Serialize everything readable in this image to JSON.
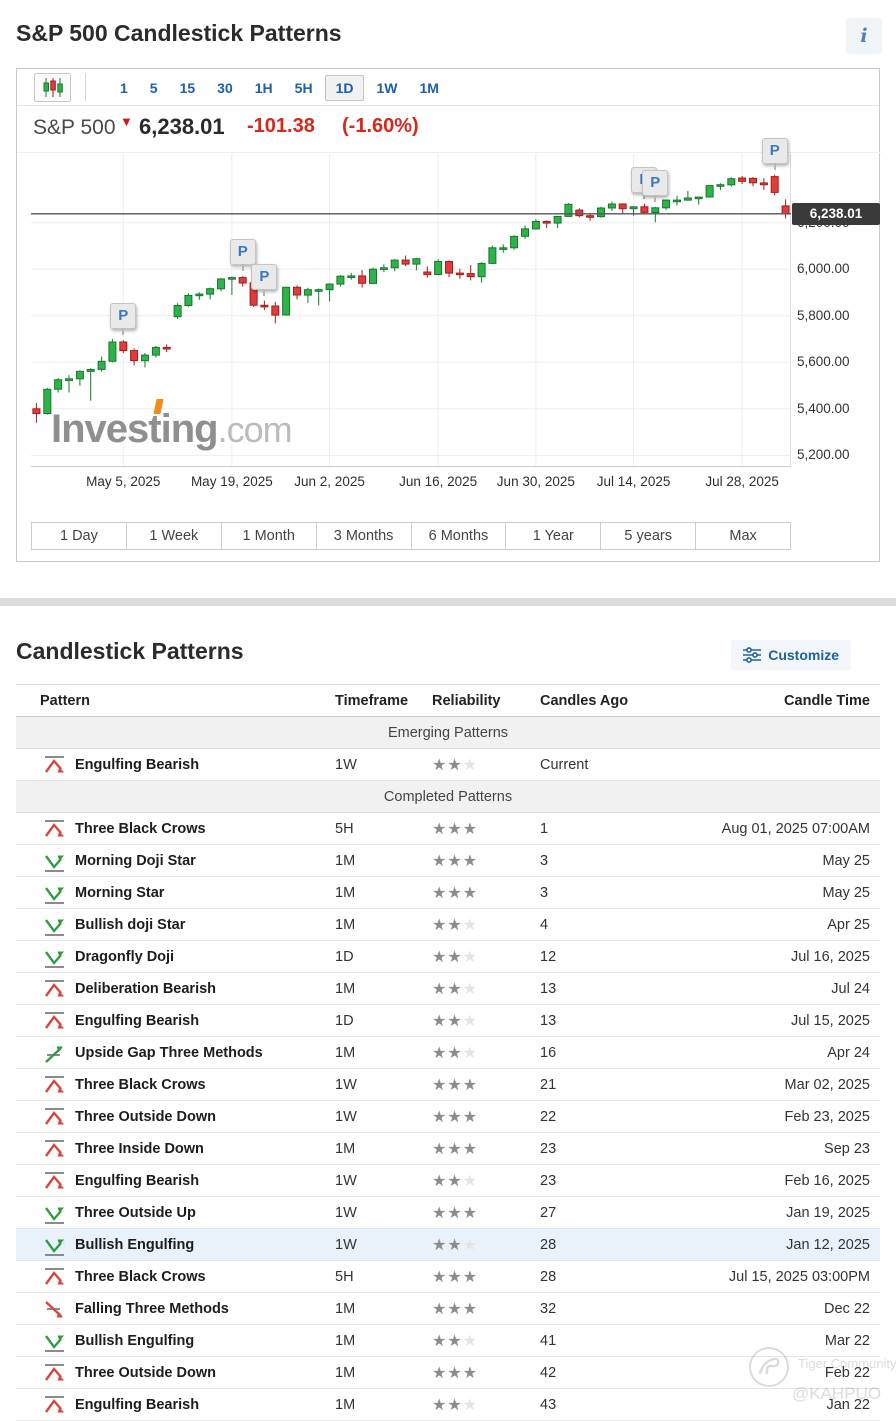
{
  "page": {
    "title": "S&P 500 Candlestick Patterns"
  },
  "icons": {
    "info": "i",
    "chart_type": "candlestick",
    "customize": "sliders",
    "pattern_bearish": "peak-arrow-down",
    "pattern_bullish": "valley-arrow-up",
    "pattern_bullish_cont": "arrow-up-through-line",
    "pattern_bearish_cont": "arrow-down-through-line"
  },
  "colors": {
    "up": "#2fb24a",
    "up_border": "#157a2c",
    "down": "#e23b3b",
    "down_border": "#a31d1d",
    "link_blue": "#1c60a8",
    "change_red": "#d8271c",
    "star_filled": "#8c8c8c",
    "star_empty": "#e4e4e2",
    "highlight_row": "#e9f2fb",
    "price_line": "#555555"
  },
  "chart_widget": {
    "timeframes": [
      "1",
      "5",
      "15",
      "30",
      "1H",
      "5H",
      "1D",
      "1W",
      "1M"
    ],
    "selected_timeframe": "1D",
    "instrument": "S&P 500",
    "price": "6,238.01",
    "change": "-101.38",
    "change_pct": "(-1.60%)",
    "price_tag": "6,238.01",
    "logo_main": "Investing",
    "logo_suffix": ".com",
    "range_buttons": [
      "1 Day",
      "1 Week",
      "1 Month",
      "3 Months",
      "6 Months",
      "1 Year",
      "5 years",
      "Max"
    ]
  },
  "chart_data": {
    "type": "candlestick",
    "title": "S&P 500 daily candlestick chart",
    "ylim": [
      5150,
      6495
    ],
    "current_price": 6238.01,
    "y_tick_labels": [
      "6,200.00",
      "6,000.00",
      "5,800.00",
      "5,600.00",
      "5,400.00",
      "5,200.00"
    ],
    "y_tick_values": [
      6200,
      6000,
      5800,
      5600,
      5400,
      5200
    ],
    "x_labels": [
      "May 5, 2025",
      "May 19, 2025",
      "Jun 2, 2025",
      "Jun 16, 2025",
      "Jun 30, 2025",
      "Jul 14, 2025",
      "Jul 28, 2025"
    ],
    "x_label_candle_indices": [
      8,
      18,
      27,
      37,
      46,
      55,
      65
    ],
    "candles": [
      [
        5400,
        5425,
        5340,
        5380
      ],
      [
        5380,
        5490,
        5375,
        5484
      ],
      [
        5484,
        5532,
        5470,
        5525
      ],
      [
        5525,
        5545,
        5470,
        5529
      ],
      [
        5529,
        5565,
        5500,
        5561
      ],
      [
        5561,
        5575,
        5435,
        5569
      ],
      [
        5569,
        5625,
        5560,
        5604
      ],
      [
        5604,
        5700,
        5600,
        5687
      ],
      [
        5687,
        5695,
        5640,
        5650
      ],
      [
        5650,
        5660,
        5586,
        5607
      ],
      [
        5607,
        5640,
        5578,
        5631
      ],
      [
        5631,
        5670,
        5620,
        5664
      ],
      [
        5664,
        5677,
        5644,
        5660
      ],
      [
        5796,
        5854,
        5786,
        5844
      ],
      [
        5844,
        5897,
        5838,
        5887
      ],
      [
        5887,
        5901,
        5868,
        5893
      ],
      [
        5893,
        5921,
        5870,
        5916
      ],
      [
        5916,
        5962,
        5905,
        5958
      ],
      [
        5958,
        5968,
        5889,
        5964
      ],
      [
        5964,
        5970,
        5925,
        5941
      ],
      [
        5941,
        5955,
        5838,
        5845
      ],
      [
        5845,
        5865,
        5825,
        5842
      ],
      [
        5842,
        5860,
        5767,
        5803
      ],
      [
        5803,
        5925,
        5800,
        5922
      ],
      [
        5922,
        5930,
        5870,
        5889
      ],
      [
        5889,
        5920,
        5855,
        5912
      ],
      [
        5912,
        5917,
        5844,
        5912
      ],
      [
        5912,
        5940,
        5861,
        5936
      ],
      [
        5936,
        5975,
        5925,
        5970
      ],
      [
        5970,
        5983,
        5955,
        5971
      ],
      [
        5971,
        5996,
        5921,
        5939
      ],
      [
        5939,
        6007,
        5935,
        6000
      ],
      [
        6000,
        6021,
        5987,
        6006
      ],
      [
        6006,
        6043,
        5992,
        6039
      ],
      [
        6039,
        6059,
        6013,
        6022
      ],
      [
        6022,
        6049,
        5995,
        6045
      ],
      [
        5988,
        6012,
        5963,
        5977
      ],
      [
        5977,
        6043,
        5974,
        6033
      ],
      [
        6033,
        6038,
        5965,
        5983
      ],
      [
        5983,
        6002,
        5959,
        5981
      ],
      [
        5981,
        6018,
        5952,
        5968
      ],
      [
        5968,
        6030,
        5943,
        6025
      ],
      [
        6025,
        6101,
        6022,
        6092
      ],
      [
        6092,
        6107,
        6071,
        6092
      ],
      [
        6092,
        6146,
        6083,
        6141
      ],
      [
        6141,
        6188,
        6130,
        6173
      ],
      [
        6173,
        6215,
        6170,
        6205
      ],
      [
        6205,
        6210,
        6177,
        6198
      ],
      [
        6198,
        6228,
        6177,
        6227
      ],
      [
        6227,
        6284,
        6226,
        6279
      ],
      [
        6254,
        6262,
        6223,
        6230
      ],
      [
        6230,
        6242,
        6208,
        6226
      ],
      [
        6226,
        6269,
        6221,
        6263
      ],
      [
        6263,
        6290,
        6251,
        6280
      ],
      [
        6280,
        6283,
        6238,
        6260
      ],
      [
        6260,
        6271,
        6229,
        6268
      ],
      [
        6268,
        6282,
        6236,
        6244
      ],
      [
        6244,
        6268,
        6202,
        6264
      ],
      [
        6264,
        6299,
        6254,
        6297
      ],
      [
        6297,
        6315,
        6274,
        6297
      ],
      [
        6297,
        6336,
        6294,
        6306
      ],
      [
        6306,
        6310,
        6277,
        6310
      ],
      [
        6310,
        6360,
        6308,
        6359
      ],
      [
        6359,
        6369,
        6340,
        6363
      ],
      [
        6363,
        6395,
        6355,
        6389
      ],
      [
        6392,
        6401,
        6366,
        6378
      ],
      [
        6390,
        6396,
        6356,
        6371
      ],
      [
        6371,
        6391,
        6341,
        6363
      ],
      [
        6398,
        6406,
        6318,
        6330
      ],
      [
        6272,
        6300,
        6218,
        6238
      ]
    ],
    "pattern_markers": [
      {
        "label": "P",
        "candle": 8
      },
      {
        "label": "P",
        "candle": 19
      },
      {
        "label": "P",
        "candle": 21
      },
      {
        "label": "P",
        "candle": 56
      },
      {
        "label": "P",
        "candle": 57
      },
      {
        "label": "P",
        "candle": 68
      }
    ]
  },
  "patterns_section": {
    "title": "Candlestick Patterns",
    "customize_label": "Customize"
  },
  "patterns_table": {
    "columns": [
      "Pattern",
      "Timeframe",
      "Reliability",
      "Candles Ago",
      "Candle Time"
    ],
    "max_stars": 3,
    "rows": [
      {
        "type": "group",
        "label": "Emerging Patterns"
      },
      {
        "type": "row",
        "name": "Engulfing Bearish",
        "direction": "bearish",
        "timeframe": "1W",
        "reliability": 2,
        "candles_ago": "Current",
        "candle_time": ""
      },
      {
        "type": "group",
        "label": "Completed Patterns"
      },
      {
        "type": "row",
        "name": "Three Black Crows",
        "direction": "bearish",
        "timeframe": "5H",
        "reliability": 3,
        "candles_ago": "1",
        "candle_time": "Aug 01, 2025 07:00AM"
      },
      {
        "type": "row",
        "name": "Morning Doji Star",
        "direction": "bullish",
        "timeframe": "1M",
        "reliability": 3,
        "candles_ago": "3",
        "candle_time": "May 25"
      },
      {
        "type": "row",
        "name": "Morning Star",
        "direction": "bullish",
        "timeframe": "1M",
        "reliability": 3,
        "candles_ago": "3",
        "candle_time": "May 25"
      },
      {
        "type": "row",
        "name": "Bullish doji Star",
        "direction": "bullish",
        "timeframe": "1M",
        "reliability": 2,
        "candles_ago": "4",
        "candle_time": "Apr 25"
      },
      {
        "type": "row",
        "name": "Dragonfly Doji",
        "direction": "bullish",
        "timeframe": "1D",
        "reliability": 2,
        "candles_ago": "12",
        "candle_time": "Jul 16, 2025"
      },
      {
        "type": "row",
        "name": "Deliberation Bearish",
        "direction": "bearish",
        "timeframe": "1M",
        "reliability": 2,
        "candles_ago": "13",
        "candle_time": "Jul 24"
      },
      {
        "type": "row",
        "name": "Engulfing Bearish",
        "direction": "bearish",
        "timeframe": "1D",
        "reliability": 2,
        "candles_ago": "13",
        "candle_time": "Jul 15, 2025"
      },
      {
        "type": "row",
        "name": "Upside Gap Three Methods",
        "direction": "bullish-cont",
        "timeframe": "1M",
        "reliability": 2,
        "candles_ago": "16",
        "candle_time": "Apr 24"
      },
      {
        "type": "row",
        "name": "Three Black Crows",
        "direction": "bearish",
        "timeframe": "1W",
        "reliability": 3,
        "candles_ago": "21",
        "candle_time": "Mar 02, 2025"
      },
      {
        "type": "row",
        "name": "Three Outside Down",
        "direction": "bearish",
        "timeframe": "1W",
        "reliability": 3,
        "candles_ago": "22",
        "candle_time": "Feb 23, 2025"
      },
      {
        "type": "row",
        "name": "Three Inside Down",
        "direction": "bearish",
        "timeframe": "1M",
        "reliability": 3,
        "candles_ago": "23",
        "candle_time": "Sep 23"
      },
      {
        "type": "row",
        "name": "Engulfing Bearish",
        "direction": "bearish",
        "timeframe": "1W",
        "reliability": 2,
        "candles_ago": "23",
        "candle_time": "Feb 16, 2025"
      },
      {
        "type": "row",
        "name": "Three Outside Up",
        "direction": "bullish",
        "timeframe": "1W",
        "reliability": 3,
        "candles_ago": "27",
        "candle_time": "Jan 19, 2025"
      },
      {
        "type": "row",
        "name": "Bullish Engulfing",
        "direction": "bullish",
        "timeframe": "1W",
        "reliability": 2,
        "candles_ago": "28",
        "candle_time": "Jan 12, 2025",
        "highlighted": true
      },
      {
        "type": "row",
        "name": "Three Black Crows",
        "direction": "bearish",
        "timeframe": "5H",
        "reliability": 3,
        "candles_ago": "28",
        "candle_time": "Jul 15, 2025 03:00PM"
      },
      {
        "type": "row",
        "name": "Falling Three Methods",
        "direction": "bearish-cont",
        "timeframe": "1M",
        "reliability": 3,
        "candles_ago": "32",
        "candle_time": "Dec 22"
      },
      {
        "type": "row",
        "name": "Bullish Engulfing",
        "direction": "bullish",
        "timeframe": "1M",
        "reliability": 2,
        "candles_ago": "41",
        "candle_time": "Mar 22"
      },
      {
        "type": "row",
        "name": "Three Outside Down",
        "direction": "bearish",
        "timeframe": "1M",
        "reliability": 3,
        "candles_ago": "42",
        "candle_time": "Feb 22"
      },
      {
        "type": "row",
        "name": "Engulfing Bearish",
        "direction": "bearish",
        "timeframe": "1M",
        "reliability": 2,
        "candles_ago": "43",
        "candle_time": "Jan 22"
      }
    ]
  },
  "watermark": {
    "line1": "Tiger Community",
    "line2": "@KAHPUO"
  }
}
